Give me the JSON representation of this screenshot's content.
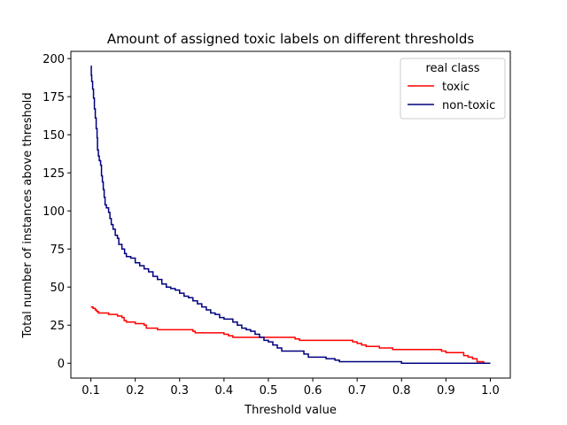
{
  "chart_data": {
    "type": "line",
    "title": "Amount of assigned toxic labels on different thresholds",
    "xlabel": "Threshold value",
    "ylabel": "Total number of instances above threshold",
    "xlim": [
      0.055,
      1.045
    ],
    "ylim": [
      -9.75,
      204.75
    ],
    "x_ticks": [
      0.1,
      0.2,
      0.3,
      0.4,
      0.5,
      0.6,
      0.7,
      0.8,
      0.9,
      1.0
    ],
    "x_tick_labels": [
      "0.1",
      "0.2",
      "0.3",
      "0.4",
      "0.5",
      "0.6",
      "0.7",
      "0.8",
      "0.9",
      "1.0"
    ],
    "y_ticks": [
      0,
      25,
      50,
      75,
      100,
      125,
      150,
      175,
      200
    ],
    "y_tick_labels": [
      "0",
      "25",
      "50",
      "75",
      "100",
      "125",
      "150",
      "175",
      "200"
    ],
    "grid": false,
    "legend": {
      "title": "real class",
      "position": "top-right"
    },
    "series": [
      {
        "name": "toxic",
        "color": "#ff0000",
        "step": true,
        "points": [
          [
            0.1,
            37
          ],
          [
            0.105,
            36
          ],
          [
            0.11,
            35
          ],
          [
            0.113,
            34
          ],
          [
            0.117,
            33
          ],
          [
            0.14,
            32
          ],
          [
            0.16,
            31
          ],
          [
            0.17,
            30
          ],
          [
            0.175,
            28
          ],
          [
            0.18,
            27
          ],
          [
            0.2,
            26
          ],
          [
            0.22,
            25
          ],
          [
            0.225,
            23
          ],
          [
            0.25,
            22
          ],
          [
            0.33,
            21
          ],
          [
            0.335,
            20
          ],
          [
            0.4,
            19
          ],
          [
            0.41,
            18
          ],
          [
            0.42,
            17
          ],
          [
            0.49,
            17
          ],
          [
            0.5,
            17
          ],
          [
            0.56,
            16
          ],
          [
            0.57,
            15
          ],
          [
            0.69,
            14
          ],
          [
            0.7,
            13
          ],
          [
            0.71,
            12
          ],
          [
            0.72,
            11
          ],
          [
            0.75,
            10
          ],
          [
            0.78,
            9
          ],
          [
            0.89,
            8
          ],
          [
            0.9,
            7
          ],
          [
            0.94,
            5
          ],
          [
            0.95,
            4
          ],
          [
            0.96,
            3
          ],
          [
            0.97,
            1
          ],
          [
            0.985,
            0
          ],
          [
            1.0,
            0
          ]
        ]
      },
      {
        "name": "non-toxic",
        "color": "#00007f",
        "step": true,
        "points": [
          [
            0.1,
            195
          ],
          [
            0.101,
            189
          ],
          [
            0.102,
            185
          ],
          [
            0.104,
            180
          ],
          [
            0.106,
            174
          ],
          [
            0.108,
            167
          ],
          [
            0.11,
            161
          ],
          [
            0.112,
            154
          ],
          [
            0.114,
            148
          ],
          [
            0.115,
            140
          ],
          [
            0.117,
            136
          ],
          [
            0.119,
            133
          ],
          [
            0.122,
            130
          ],
          [
            0.124,
            123
          ],
          [
            0.126,
            119
          ],
          [
            0.128,
            114
          ],
          [
            0.13,
            109
          ],
          [
            0.132,
            104
          ],
          [
            0.135,
            102
          ],
          [
            0.14,
            99
          ],
          [
            0.143,
            95
          ],
          [
            0.146,
            91
          ],
          [
            0.15,
            88
          ],
          [
            0.155,
            84
          ],
          [
            0.16,
            82
          ],
          [
            0.163,
            78
          ],
          [
            0.17,
            75
          ],
          [
            0.176,
            72
          ],
          [
            0.18,
            70
          ],
          [
            0.19,
            69
          ],
          [
            0.2,
            66
          ],
          [
            0.21,
            64
          ],
          [
            0.22,
            62
          ],
          [
            0.23,
            60
          ],
          [
            0.24,
            57
          ],
          [
            0.25,
            55
          ],
          [
            0.26,
            52
          ],
          [
            0.27,
            50
          ],
          [
            0.28,
            49
          ],
          [
            0.29,
            48
          ],
          [
            0.3,
            46
          ],
          [
            0.31,
            44
          ],
          [
            0.32,
            43
          ],
          [
            0.33,
            41
          ],
          [
            0.34,
            39
          ],
          [
            0.35,
            37
          ],
          [
            0.36,
            35
          ],
          [
            0.37,
            33
          ],
          [
            0.38,
            32
          ],
          [
            0.39,
            30
          ],
          [
            0.4,
            29
          ],
          [
            0.42,
            27
          ],
          [
            0.43,
            25
          ],
          [
            0.44,
            23
          ],
          [
            0.45,
            22
          ],
          [
            0.46,
            21
          ],
          [
            0.47,
            19
          ],
          [
            0.48,
            17
          ],
          [
            0.49,
            15
          ],
          [
            0.5,
            14
          ],
          [
            0.51,
            12
          ],
          [
            0.52,
            10
          ],
          [
            0.53,
            8
          ],
          [
            0.57,
            8
          ],
          [
            0.58,
            6
          ],
          [
            0.59,
            4
          ],
          [
            0.62,
            4
          ],
          [
            0.63,
            3
          ],
          [
            0.65,
            2
          ],
          [
            0.66,
            1
          ],
          [
            0.79,
            1
          ],
          [
            0.8,
            0
          ],
          [
            1.0,
            0
          ]
        ]
      }
    ]
  }
}
